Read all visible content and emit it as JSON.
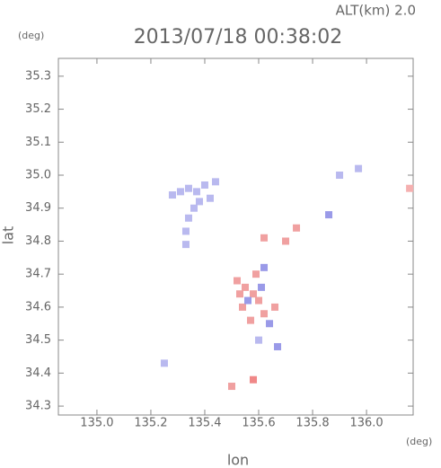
{
  "chart_data": {
    "type": "scatter",
    "title": "2013/07/18 00:38:02",
    "subtitle": "ALT(km) 2.0",
    "y_unit": "(deg)",
    "x_unit": "(deg)",
    "xlabel": "lon",
    "ylabel": "lat",
    "xlim": [
      134.857,
      136.173
    ],
    "ylim": [
      34.273,
      35.354
    ],
    "xticks": [
      {
        "value": 135,
        "label": "135.0"
      },
      135.2,
      135.4,
      135.6,
      135.8,
      {
        "value": 136,
        "label": "136.0"
      }
    ],
    "yticks": [
      34.3,
      34.4,
      34.5,
      34.6,
      34.7,
      34.8,
      34.9,
      {
        "value": 35,
        "label": "35.0"
      },
      35.1,
      35.2,
      35.3
    ],
    "x": [
      135.28,
      135.31,
      135.34,
      135.37,
      135.4,
      135.42,
      135.38,
      135.36,
      135.34,
      135.33,
      135.33,
      135.44,
      135.52,
      135.55,
      135.58,
      135.6,
      135.54,
      135.57,
      135.62,
      135.66,
      135.59,
      135.53,
      135.58,
      135.5,
      136.16,
      135.74,
      135.7,
      135.62,
      135.56,
      135.61,
      135.64,
      135.67,
      135.6,
      135.86,
      135.9,
      135.97,
      135.62,
      135.25
    ],
    "y": [
      34.94,
      34.95,
      34.96,
      34.95,
      34.97,
      34.93,
      34.92,
      34.9,
      34.87,
      34.83,
      34.79,
      34.98,
      34.68,
      34.66,
      34.64,
      34.62,
      34.6,
      34.56,
      34.58,
      34.6,
      34.7,
      34.64,
      34.38,
      34.36,
      34.96,
      34.84,
      34.8,
      34.81,
      34.62,
      34.66,
      34.55,
      34.48,
      34.5,
      34.88,
      35.0,
      35.02,
      34.72,
      34.43
    ],
    "point_colors": [
      "#b9b9ef",
      "#b9b9ef",
      "#b9b9ef",
      "#b9b9ef",
      "#b9b9ef",
      "#b9b9ef",
      "#b9b9ef",
      "#b9b9ef",
      "#b9b9ef",
      "#b9b9ef",
      "#b9b9ef",
      "#b9b9ef",
      "#f0a0a0",
      "#f0a0a0",
      "#f0a0a0",
      "#f0a0a0",
      "#f0a0a0",
      "#f0a0a0",
      "#f0a0a0",
      "#f0a0a0",
      "#f0a0a0",
      "#f0a0a0",
      "#f08888",
      "#f0a0a0",
      "#f5b0b0",
      "#f0a0a0",
      "#f0a0a0",
      "#f0a0a0",
      "#9a9ae8",
      "#9a9ae8",
      "#9a9ae8",
      "#9a9ae8",
      "#b9b9ef",
      "#9a9ae8",
      "#b9b9ef",
      "#b9b9ef",
      "#9a9ae8",
      "#b9b9ef"
    ]
  }
}
